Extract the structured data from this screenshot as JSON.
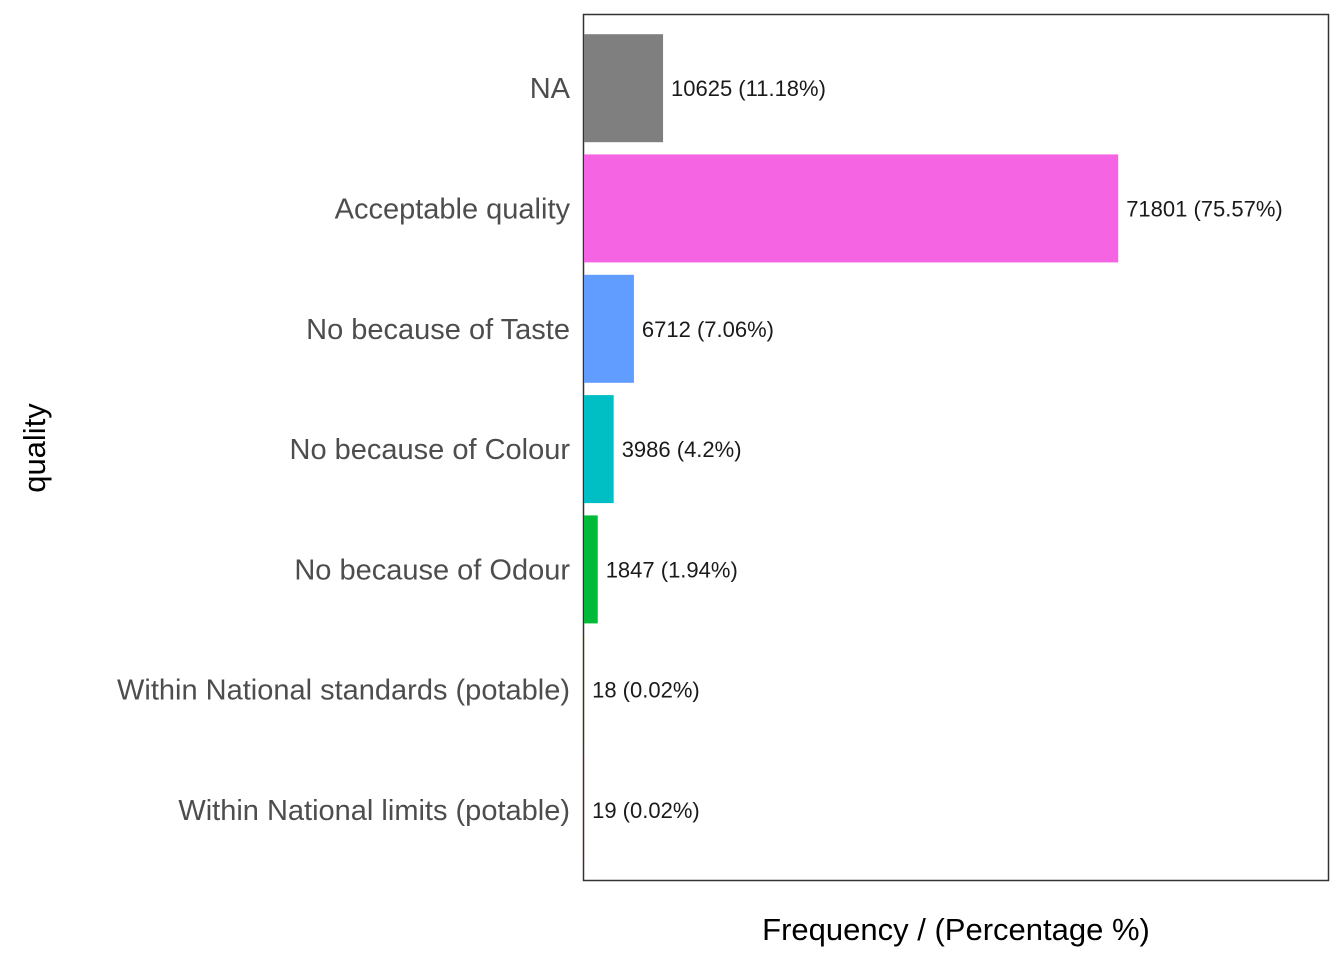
{
  "chart_data": {
    "type": "bar",
    "orientation": "horizontal",
    "title": "",
    "xlabel": "Frequency / (Percentage %)",
    "ylabel": "quality",
    "xlim": [
      0,
      100000
    ],
    "grid": false,
    "categories": [
      "NA",
      "Acceptable quality",
      "No because of Taste",
      "No because of Colour",
      "No because of Odour",
      "Within National standards (potable)",
      "Within National limits (potable)"
    ],
    "values": [
      10625,
      71801,
      6712,
      3986,
      1847,
      18,
      19
    ],
    "labels": [
      "10625 (11.18%)",
      "71801 (75.57%)",
      "6712 (7.06%)",
      "3986 (4.2%)",
      "1847 (1.94%)",
      "18 (0.02%)",
      "19 (0.02%)"
    ],
    "colors": [
      "#7f7f7f",
      "#f564e3",
      "#619cff",
      "#00bfc4",
      "#00ba38",
      "#b79f00",
      "#f8766d"
    ]
  }
}
